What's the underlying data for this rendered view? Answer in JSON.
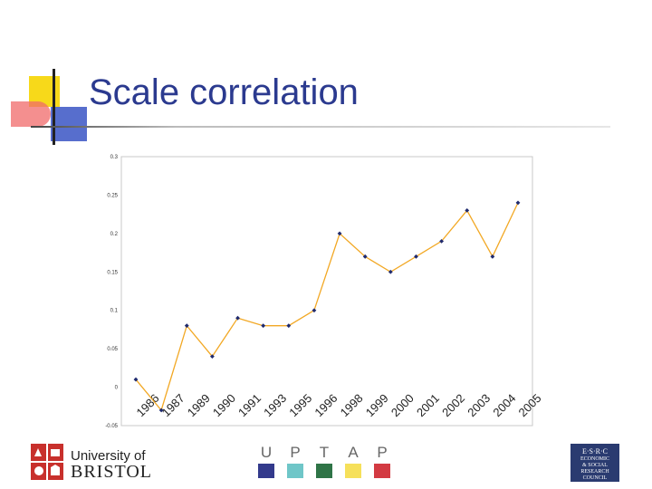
{
  "slide": {
    "title": "Scale correlation"
  },
  "chart_data": {
    "type": "line",
    "categories": [
      "1986",
      "1987",
      "1989",
      "1990",
      "1991",
      "1993",
      "1995",
      "1996",
      "1998",
      "1999",
      "2000",
      "2001",
      "2002",
      "2003",
      "2004",
      "2005"
    ],
    "series": [
      {
        "values": [
          0.01,
          -0.03,
          0.08,
          0.04,
          0.09,
          0.08,
          0.08,
          0.1,
          0.2,
          0.17,
          0.15,
          0.17,
          0.19,
          0.23,
          0.17,
          0.24
        ],
        "color": "#f2a824",
        "marker_color": "#1f2a6e"
      }
    ],
    "ylim": [
      -0.05,
      0.3
    ],
    "yticks": [
      "-0.05",
      "0",
      "0.05",
      "0.1",
      "0.15",
      "0.2",
      "0.25",
      "0.3"
    ],
    "xlabel": "",
    "ylabel": "",
    "grid": false,
    "frame_color": "#c8c8c8"
  },
  "footer": {
    "bristol": {
      "line1": "University of",
      "line2": "BRISTOL",
      "crest_color": "#c8302c"
    },
    "uptap": [
      {
        "letter": "U",
        "color": "#333a8c"
      },
      {
        "letter": "P",
        "color": "#6fc6c8"
      },
      {
        "letter": "T",
        "color": "#2f7447"
      },
      {
        "letter": "A",
        "color": "#f6e05a"
      },
      {
        "letter": "P",
        "color": "#d33a42"
      }
    ],
    "esrc": {
      "lines": [
        "E·S·R·C",
        "ECONOMIC",
        "& SOCIAL",
        "RESEARCH",
        "COUNCIL"
      ],
      "bg_color": "#2a3b70"
    }
  }
}
